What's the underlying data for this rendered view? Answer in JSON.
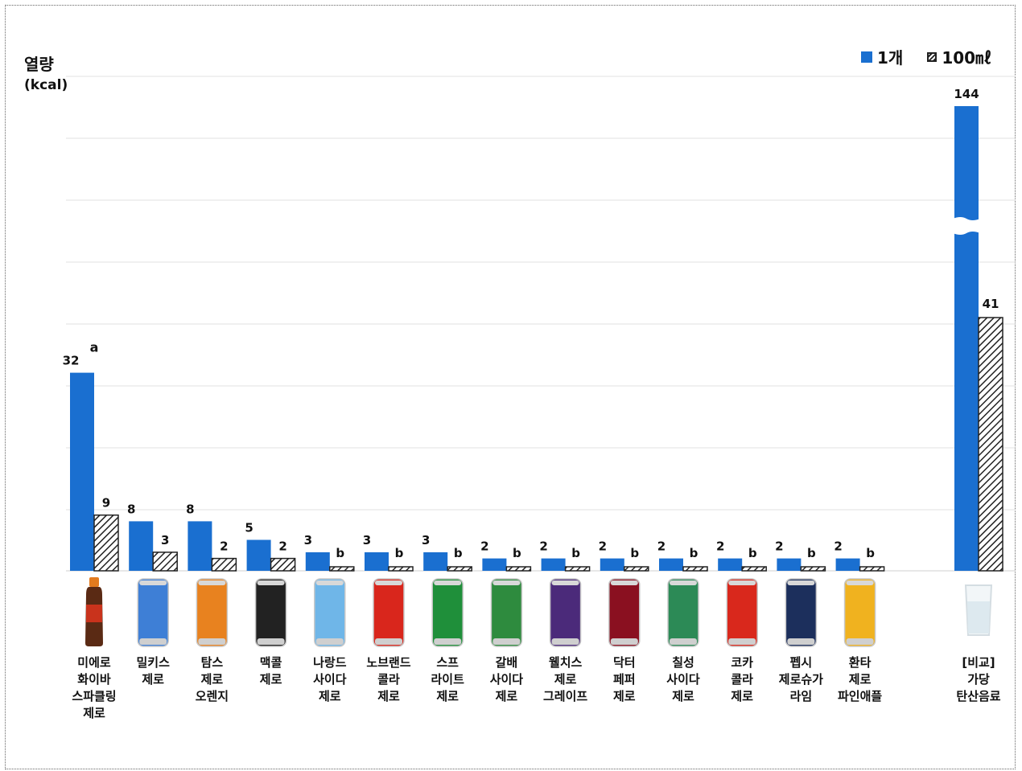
{
  "chart_data": {
    "type": "bar",
    "ylabel": "열량",
    "yunit": "(kcal)",
    "legend": {
      "position": "top-right",
      "items": [
        "1개",
        "100㎖"
      ]
    },
    "series": [
      {
        "name": "1개",
        "color": "#1a6fd0",
        "pattern": "solid",
        "values": [
          32,
          8,
          8,
          5,
          3,
          3,
          3,
          2,
          2,
          2,
          2,
          2,
          2,
          2,
          144
        ]
      },
      {
        "name": "100㎖",
        "color": "#222222",
        "pattern": "hatched",
        "values": [
          9,
          3,
          2,
          2,
          null,
          null,
          null,
          null,
          null,
          null,
          null,
          null,
          null,
          null,
          41
        ],
        "labels": [
          "9",
          "3",
          "2",
          "2",
          "b",
          "b",
          "b",
          "b",
          "b",
          "b",
          "b",
          "b",
          "b",
          "b",
          "41"
        ]
      }
    ],
    "categories": [
      "미에로\n화이바\n스파클링\n제로",
      "밀키스\n제로",
      "탐스\n제로\n오렌지",
      "맥콜\n제로",
      "나랑드\n사이다\n제로",
      "노브랜드\n콜라\n제로",
      "스프\n라이트\n제로",
      "갈배\n사이다\n제로",
      "웰치스\n제로\n그레이프",
      "닥터\n페퍼\n제로",
      "칠성\n사이다\n제로",
      "코카\n콜라\n제로",
      "펩시\n제로슈가\n라임",
      "환타\n제로\n파인애플",
      "[비교]\n가당\n탄산음료"
    ],
    "annotations": [
      {
        "category_index": 0,
        "text": "a"
      }
    ],
    "axis_break": {
      "category_index": 14
    },
    "grid": true
  },
  "product_images": [
    "bottle-icon",
    "can-icon",
    "can-icon",
    "can-icon",
    "can-icon",
    "can-icon",
    "can-icon",
    "can-icon",
    "can-icon",
    "can-icon",
    "can-icon",
    "can-icon",
    "can-icon",
    "can-icon",
    "glass-icon"
  ]
}
